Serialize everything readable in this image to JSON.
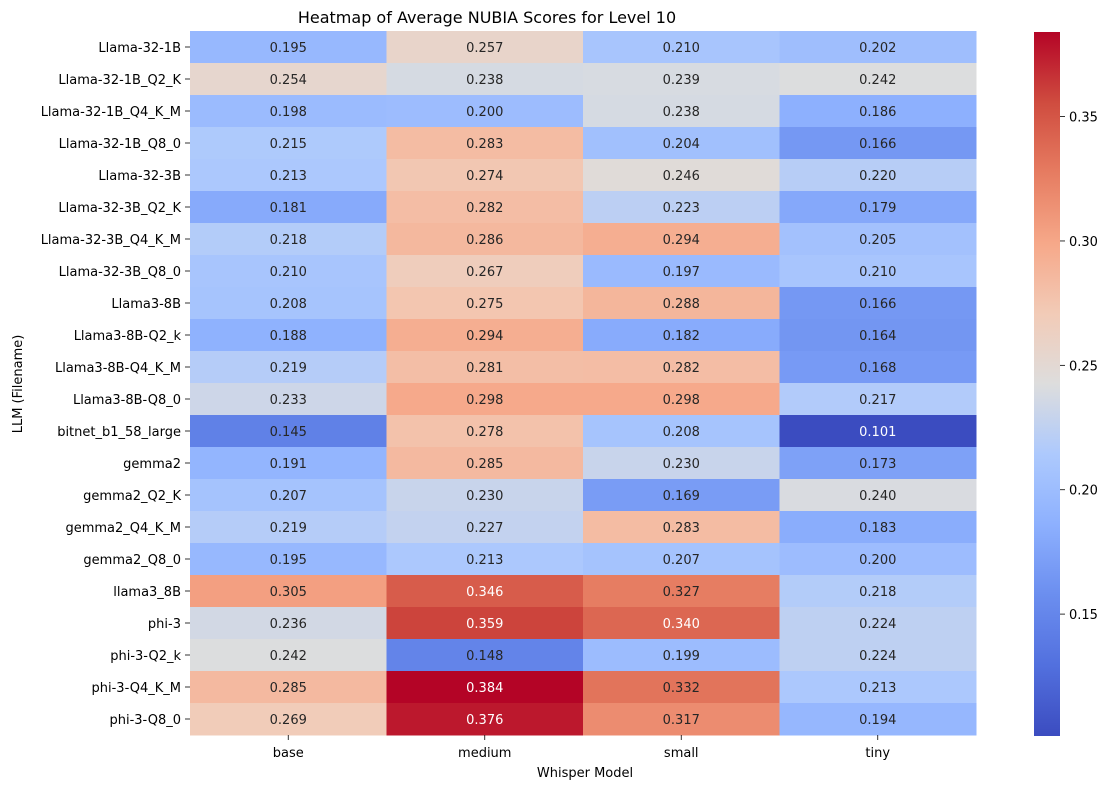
{
  "chart_data": {
    "type": "heatmap",
    "title": "Heatmap of Average NUBIA Scores for Level 10",
    "xlabel": "Whisper Model",
    "ylabel": "LLM (Filename)",
    "columns": [
      "base",
      "medium",
      "small",
      "tiny"
    ],
    "rows": [
      "Llama-32-1B",
      "Llama-32-1B_Q2_K",
      "Llama-32-1B_Q4_K_M",
      "Llama-32-1B_Q8_0",
      "Llama-32-3B",
      "Llama-32-3B_Q2_K",
      "Llama-32-3B_Q4_K_M",
      "Llama-32-3B_Q8_0",
      "Llama3-8B",
      "Llama3-8B-Q2_k",
      "Llama3-8B-Q4_K_M",
      "Llama3-8B-Q8_0",
      "bitnet_b1_58_large",
      "gemma2",
      "gemma2_Q2_K",
      "gemma2_Q4_K_M",
      "gemma2_Q8_0",
      "llama3_8B",
      "phi-3",
      "phi-3-Q2_k",
      "phi-3-Q4_K_M",
      "phi-3-Q8_0"
    ],
    "values": [
      [
        0.195,
        0.257,
        0.21,
        0.202
      ],
      [
        0.254,
        0.238,
        0.239,
        0.242
      ],
      [
        0.198,
        0.2,
        0.238,
        0.186
      ],
      [
        0.215,
        0.283,
        0.204,
        0.166
      ],
      [
        0.213,
        0.274,
        0.246,
        0.22
      ],
      [
        0.181,
        0.282,
        0.223,
        0.179
      ],
      [
        0.218,
        0.286,
        0.294,
        0.205
      ],
      [
        0.21,
        0.267,
        0.197,
        0.21
      ],
      [
        0.208,
        0.275,
        0.288,
        0.166
      ],
      [
        0.188,
        0.294,
        0.182,
        0.164
      ],
      [
        0.219,
        0.281,
        0.282,
        0.168
      ],
      [
        0.233,
        0.298,
        0.298,
        0.217
      ],
      [
        0.145,
        0.278,
        0.208,
        0.101
      ],
      [
        0.191,
        0.285,
        0.23,
        0.173
      ],
      [
        0.207,
        0.23,
        0.169,
        0.24
      ],
      [
        0.219,
        0.227,
        0.283,
        0.183
      ],
      [
        0.195,
        0.213,
        0.207,
        0.2
      ],
      [
        0.305,
        0.346,
        0.327,
        0.218
      ],
      [
        0.236,
        0.359,
        0.34,
        0.224
      ],
      [
        0.242,
        0.148,
        0.199,
        0.224
      ],
      [
        0.285,
        0.384,
        0.332,
        0.213
      ],
      [
        0.269,
        0.376,
        0.317,
        0.194
      ]
    ],
    "value_format": "0.000",
    "colormap": "coolwarm",
    "vmin": 0.101,
    "vmax": 0.384,
    "colorbar_ticks": [
      0.15,
      0.2,
      0.25,
      0.3,
      0.35
    ],
    "colorbar_tick_labels": [
      "0.15",
      "0.20",
      "0.25",
      "0.30",
      "0.35"
    ],
    "grid": false,
    "legend": "colorbar-right"
  }
}
